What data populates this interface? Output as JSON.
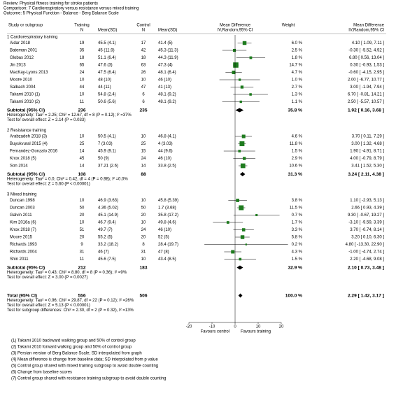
{
  "chart_data": {
    "type": "forest",
    "header": [
      "Review:   Physical fitness training for stroke patients",
      "Comparison:   7 Cardiorespiratory versus resistance versus mixed training",
      "Outcome:   5 Physical Function - Balance - Berg Balance Scale"
    ],
    "columns": {
      "study": "Study or subgroup",
      "training": "Training",
      "control": "Control",
      "n": "N",
      "mean_sd": "Mean(SD)",
      "md": "Mean Difference",
      "method": "IV,Random,95% CI",
      "weight": "Weight"
    },
    "groups": [
      {
        "name": "1 Cardiorespiratory training",
        "studies": [
          {
            "name": "Aidar 2018",
            "t_n": 19,
            "t_mean_sd": "45.5 (4.1)",
            "c_n": 17,
            "c_mean_sd": "41.4 (5)",
            "weight": {
              "value": 6.0,
              "label": "6.0 %"
            },
            "effect": {
              "value": 4.1,
              "label": "4.10 [ 1.09, 7.11 ]"
            },
            "ci": [
              1.09,
              7.11
            ]
          },
          {
            "name": "Bateman 2001",
            "t_n": 35,
            "t_mean_sd": "45 (11.9)",
            "c_n": 42,
            "c_mean_sd": "45.3 (11.3)",
            "weight": {
              "value": 2.5,
              "label": "2.5 %"
            },
            "effect": {
              "value": -0.3,
              "label": "-0.30 [ -5.52, 4.92 ]"
            },
            "ci": [
              -5.52,
              4.92
            ]
          },
          {
            "name": "Globas 2012",
            "t_n": 18,
            "t_mean_sd": "51.1 (6.4)",
            "c_n": 18,
            "c_mean_sd": "44.3 (11.9)",
            "weight": {
              "value": 1.8,
              "label": "1.8 %"
            },
            "effect": {
              "value": 6.8,
              "label": "6.80 [ 0.56, 13.04 ]"
            },
            "ci": [
              0.56,
              13.04
            ]
          },
          {
            "name": "Jin 2013",
            "t_n": 65,
            "t_mean_sd": "47.6 (3)",
            "c_n": 63,
            "c_mean_sd": "47.3 (4)",
            "weight": {
              "value": 14.7,
              "label": "14.7 %"
            },
            "effect": {
              "value": 0.3,
              "label": "0.30 [ -0.93, 1.53 ]"
            },
            "ci": [
              -0.93,
              1.53
            ]
          },
          {
            "name": "MacKay-Lyons 2013",
            "t_n": 24,
            "t_mean_sd": "47.5 (6.4)",
            "c_n": 26,
            "c_mean_sd": "48.1 (6.4)",
            "weight": {
              "value": 4.7,
              "label": "4.7 %"
            },
            "effect": {
              "value": -0.6,
              "label": "-0.60 [ -4.15, 2.95 ]"
            },
            "ci": [
              -4.15,
              2.95
            ]
          },
          {
            "name": "Moore 2010",
            "t_n": 10,
            "t_mean_sd": "48 (10)",
            "c_n": 10,
            "c_mean_sd": "46 (10)",
            "weight": {
              "value": 1.0,
              "label": "1.0 %"
            },
            "effect": {
              "value": 2.0,
              "label": "2.00 [ -6.77, 10.77 ]"
            },
            "ci": [
              -6.77,
              10.77
            ]
          },
          {
            "name": "Salbach 2004",
            "t_n": 44,
            "t_mean_sd": "44 (11)",
            "c_n": 47,
            "c_mean_sd": "41 (13)",
            "weight": {
              "value": 2.7,
              "label": "2.7 %"
            },
            "effect": {
              "value": 3.0,
              "label": "3.00 [ -1.94, 7.94 ]"
            },
            "ci": [
              -1.94,
              7.94
            ]
          },
          {
            "name": "Takami 2010 (1)",
            "t_n": 10,
            "t_mean_sd": "54.8 (2.4)",
            "c_n": 6,
            "c_mean_sd": "48.1 (9.2)",
            "weight": {
              "value": 1.3,
              "label": "1.3 %"
            },
            "effect": {
              "value": 6.7,
              "label": "6.70 [ -0.81, 14.21 ]"
            },
            "ci": [
              -0.81,
              14.21
            ]
          },
          {
            "name": "Takami 2010 (2)",
            "t_n": 11,
            "t_mean_sd": "50.6 (5.6)",
            "c_n": 6,
            "c_mean_sd": "48.1 (9.2)",
            "weight": {
              "value": 1.1,
              "label": "1.1 %"
            },
            "effect": {
              "value": 2.5,
              "label": "2.50 [ -5.57, 10.57 ]"
            },
            "ci": [
              -5.57,
              10.57
            ]
          }
        ],
        "subtotal": {
          "name": "Subtotal (95% CI)",
          "t_n": 236,
          "c_n": 235,
          "weight": {
            "value": 35.8,
            "label": "35.8 %"
          },
          "effect": {
            "value": 1.92,
            "label": "1.92 [ 0.16, 3.68 ]"
          },
          "ci": [
            0.16,
            3.68
          ]
        },
        "heterogeneity": "Heterogeneity: Tau² = 2.25; Chi² = 12.67, df = 8 (P = 0.12); I² =37%",
        "overall_test": "Test for overall effect: Z = 2.14 (P = 0.033)"
      },
      {
        "name": "2 Resistance training",
        "studies": [
          {
            "name": "Arabzadeh 2018 (3)",
            "t_n": 10,
            "t_mean_sd": "50.5 (4.1)",
            "c_n": 10,
            "c_mean_sd": "46.8 (4.1)",
            "weight": {
              "value": 4.6,
              "label": "4.6 %"
            },
            "effect": {
              "value": 3.7,
              "label": "3.70 [ 0.11, 7.29 ]"
            },
            "ci": [
              0.11,
              7.29
            ]
          },
          {
            "name": "Buyukvural 2015 (4)",
            "t_n": 25,
            "t_mean_sd": "7 (3.03)",
            "c_n": 25,
            "c_mean_sd": "4 (3.03)",
            "weight": {
              "value": 11.8,
              "label": "11.8 %"
            },
            "effect": {
              "value": 3.0,
              "label": "3.00 [ 1.32, 4.68 ]"
            },
            "ci": [
              1.32,
              4.68
            ]
          },
          {
            "name": "Fernandez-Gonzalo 2016",
            "t_n": 14,
            "t_mean_sd": "45.9 (9.1)",
            "c_n": 15,
            "c_mean_sd": "44 (9.6)",
            "weight": {
              "value": 1.5,
              "label": "1.5 %"
            },
            "effect": {
              "value": 1.9,
              "label": "1.90 [ -4.91, 8.71 ]"
            },
            "ci": [
              -4.91,
              8.71
            ]
          },
          {
            "name": "Knox 2018 (5)",
            "t_n": 45,
            "t_mean_sd": "50 (9)",
            "c_n": 24,
            "c_mean_sd": "46 (10)",
            "weight": {
              "value": 2.9,
              "label": "2.9 %"
            },
            "effect": {
              "value": 4.0,
              "label": "4.00 [ -0.79, 8.79 ]"
            },
            "ci": [
              -0.79,
              8.79
            ]
          },
          {
            "name": "Son 2014",
            "t_n": 14,
            "t_mean_sd": "37.21 (2.6)",
            "c_n": 14,
            "c_mean_sd": "33.8 (2.5)",
            "weight": {
              "value": 10.6,
              "label": "10.6 %"
            },
            "effect": {
              "value": 3.41,
              "label": "3.41 [ 1.52, 5.30 ]"
            },
            "ci": [
              1.52,
              5.3
            ]
          }
        ],
        "subtotal": {
          "name": "Subtotal (95% CI)",
          "t_n": 108,
          "c_n": 88,
          "weight": {
            "value": 31.3,
            "label": "31.3 %"
          },
          "effect": {
            "value": 3.24,
            "label": "3.24 [ 2.11, 4.38 ]"
          },
          "ci": [
            2.11,
            4.38
          ]
        },
        "heterogeneity": "Heterogeneity: Tau² = 0.0; Chi² = 0.42, df = 4 (P = 0.98); I² =0.0%",
        "overall_test": "Test for overall effect: Z = 5.60 (P < 0.00001)"
      },
      {
        "name": "3 Mixed training",
        "studies": [
          {
            "name": "Duncan 1998",
            "t_n": 10,
            "t_mean_sd": "46.9 (3.63)",
            "c_n": 10,
            "c_mean_sd": "45.8 (5.39)",
            "weight": {
              "value": 3.8,
              "label": "3.8 %"
            },
            "effect": {
              "value": 1.1,
              "label": "1.10 [ -2.93, 5.13 ]"
            },
            "ci": [
              -2.93,
              5.13
            ]
          },
          {
            "name": "Duncan 2003",
            "t_n": 50,
            "t_mean_sd": "4.36 (5.02)",
            "c_n": 50,
            "c_mean_sd": "1.7 (3.68)",
            "weight": {
              "value": 11.5,
              "label": "11.5 %"
            },
            "effect": {
              "value": 2.66,
              "label": "2.66 [ 0.93, 4.39 ]"
            },
            "ci": [
              0.93,
              4.39
            ]
          },
          {
            "name": "Galvin 2011",
            "t_n": 20,
            "t_mean_sd": "45.1 (14.9)",
            "c_n": 20,
            "c_mean_sd": "35.8 (17.2)",
            "weight": {
              "value": 0.7,
              "label": "0.7 %"
            },
            "effect": {
              "value": 9.3,
              "label": "9.30 [ -0.67, 19.27 ]"
            },
            "ci": [
              -0.67,
              19.27
            ]
          },
          {
            "name": "Kim 2016a (6)",
            "t_n": 10,
            "t_mean_sd": "46.7 (9.4)",
            "c_n": 10,
            "c_mean_sd": "49.8 (4.6)",
            "weight": {
              "value": 1.7,
              "label": "1.7 %"
            },
            "effect": {
              "value": -3.1,
              "label": "-3.10 [ -9.59, 3.39 ]"
            },
            "ci": [
              -9.59,
              3.39
            ]
          },
          {
            "name": "Knox 2018 (7)",
            "t_n": 51,
            "t_mean_sd": "49.7 (7)",
            "c_n": 24,
            "c_mean_sd": "46 (10)",
            "weight": {
              "value": 3.3,
              "label": "3.3 %"
            },
            "effect": {
              "value": 3.7,
              "label": "3.70 [ -0.74, 8.14 ]"
            },
            "ci": [
              -0.74,
              8.14
            ]
          },
          {
            "name": "Moore 2015",
            "t_n": 20,
            "t_mean_sd": "55.2 (5)",
            "c_n": 20,
            "c_mean_sd": "52 (5)",
            "weight": {
              "value": 5.8,
              "label": "5.8 %"
            },
            "effect": {
              "value": 3.2,
              "label": "3.20 [ 0.10, 6.30 ]"
            },
            "ci": [
              0.1,
              6.3
            ]
          },
          {
            "name": "Richards 1993",
            "t_n": 9,
            "t_mean_sd": "33.2 (18.2)",
            "c_n": 8,
            "c_mean_sd": "28.4 (19.7)",
            "weight": {
              "value": 0.2,
              "label": "0.2 %"
            },
            "effect": {
              "value": 4.8,
              "label": "4.80 [ -13.30, 22.90 ]"
            },
            "ci": [
              -13.3,
              22.9
            ]
          },
          {
            "name": "Richards 2004",
            "t_n": 31,
            "t_mean_sd": "46 (7)",
            "c_n": 31,
            "c_mean_sd": "47 (8)",
            "weight": {
              "value": 4.3,
              "label": "4.3 %"
            },
            "effect": {
              "value": -1.0,
              "label": "-1.00 [ -4.74, 2.74 ]"
            },
            "ci": [
              -4.74,
              2.74
            ]
          },
          {
            "name": "Shin 2011",
            "t_n": 11,
            "t_mean_sd": "45.6 (7.5)",
            "c_n": 10,
            "c_mean_sd": "43.4 (8.5)",
            "weight": {
              "value": 1.5,
              "label": "1.5 %"
            },
            "effect": {
              "value": 2.2,
              "label": "2.20 [ -4.68, 9.08 ]"
            },
            "ci": [
              -4.68,
              9.08
            ]
          }
        ],
        "subtotal": {
          "name": "Subtotal (95% CI)",
          "t_n": 212,
          "c_n": 183,
          "weight": {
            "value": 32.9,
            "label": "32.9 %"
          },
          "effect": {
            "value": 2.1,
            "label": "2.10 [ 0.73, 3.48 ]"
          },
          "ci": [
            0.73,
            3.48
          ]
        },
        "heterogeneity": "Heterogeneity: Tau² = 0.43; Chi² = 8.80, df = 8 (P = 0.36); I² =9%",
        "overall_test": "Test for overall effect: Z = 3.00 (P = 0.0027)"
      }
    ],
    "total": {
      "name": "Total (95% CI)",
      "t_n": 556,
      "c_n": 506,
      "weight": {
        "value": 100.0,
        "label": "100.0 %"
      },
      "effect": {
        "value": 2.29,
        "label": "2.29 [ 1.42, 3.17 ]"
      },
      "ci": [
        1.42,
        3.17
      ]
    },
    "total_notes": [
      "Heterogeneity: Tau² = 0.96; Chi² = 29.87, df = 22 (P = 0.12); I² =26%",
      "Test for overall effect: Z = 5.13 (P < 0.00001)",
      "Test for subgroup differences: Chi² = 2.30, df = 2 (P = 0.32), I² =13%"
    ],
    "xlim": [
      -20,
      20
    ],
    "xticks": [
      -20,
      -10,
      0,
      10,
      20
    ],
    "xlabels": [
      "Favours control",
      "Favours training"
    ],
    "color": "#1e7b1e",
    "footnotes": [
      "(1) Takami 2010 backward walking group and 50% of control group",
      "(2) Takami 2010 forward walking group and 50% of control group",
      "(3) Persian version of Berg Balance Scale; SD interpolated from graph",
      "(4) Mean difference is change from baseline data; SD interpolated from p value",
      "(5) Control group shared with mixed training subgroup to avoid double counting",
      "(6) Change from baseline scores",
      "(7) Control group shared with resistance training subgroup to avoid double counting"
    ]
  }
}
